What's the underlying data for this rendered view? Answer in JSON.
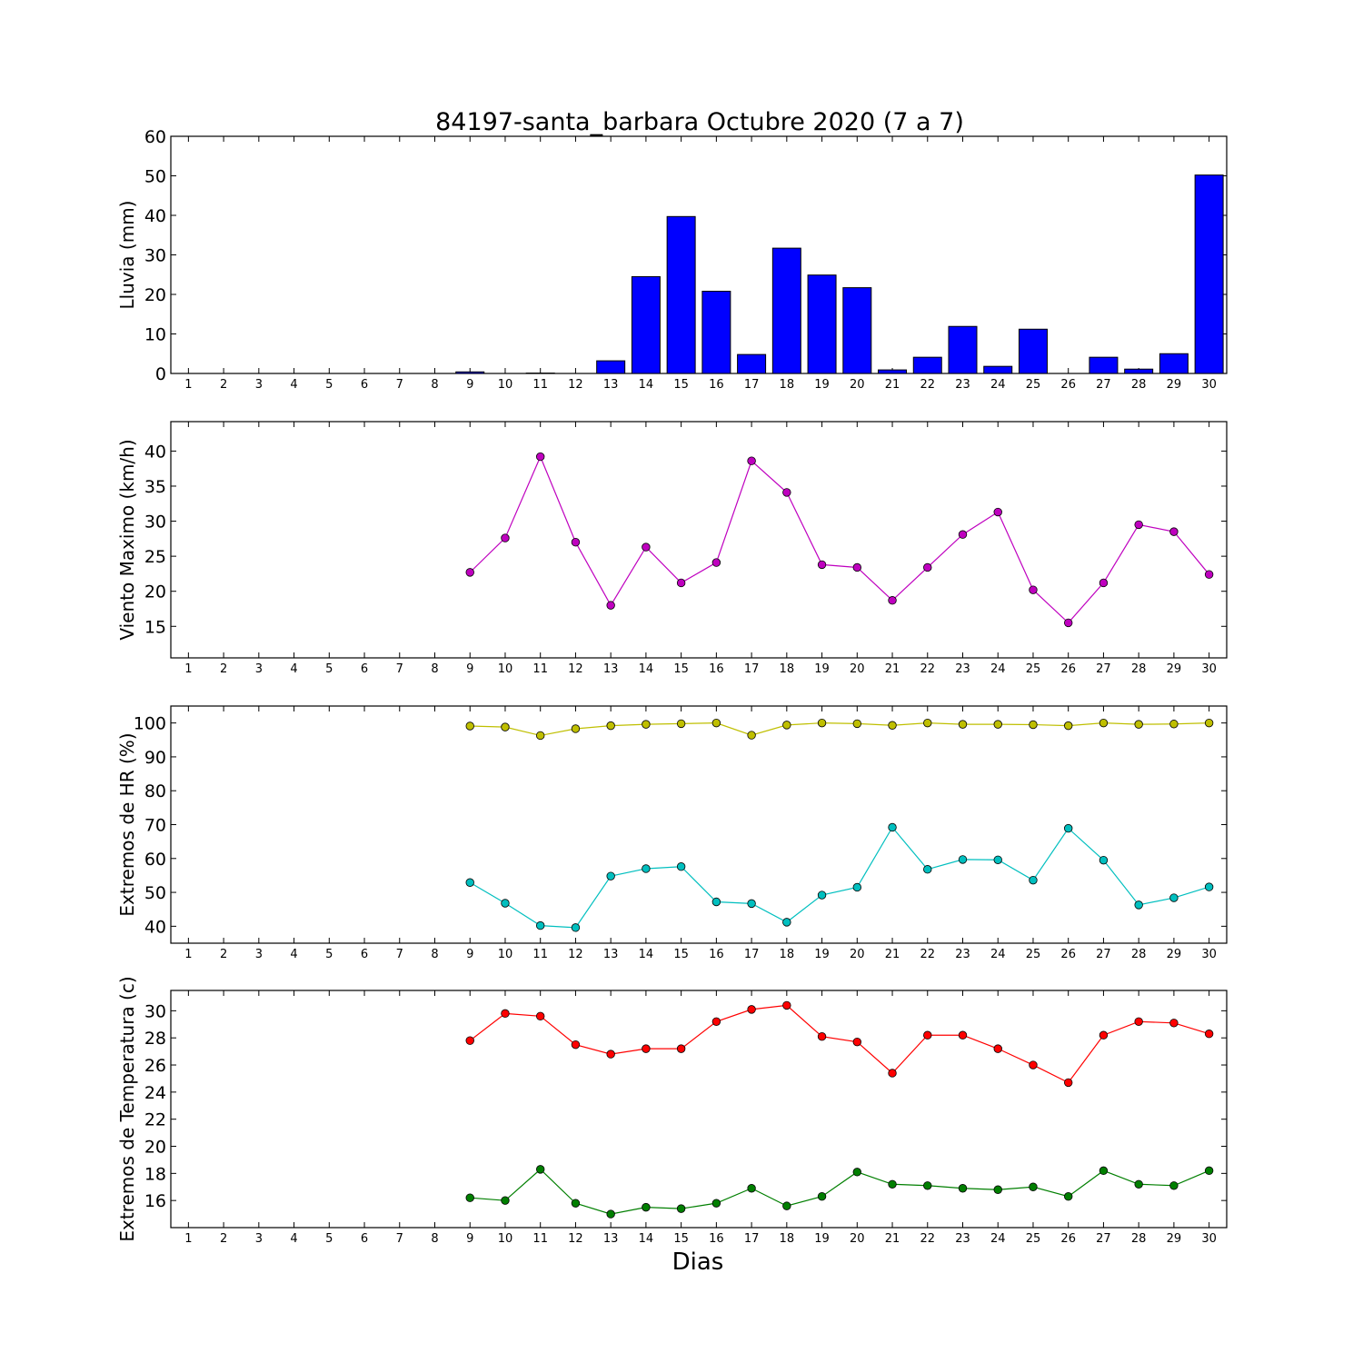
{
  "chart_data": [
    {
      "type": "bar",
      "title": "84197-santa_barbara Octubre 2020  (7 a 7)",
      "ylabel": "Lluvia (mm)",
      "xlabel": "",
      "ylim": [
        0,
        60
      ],
      "yticks": [
        0,
        10,
        20,
        30,
        40,
        50,
        60
      ],
      "xticks": [
        1,
        2,
        3,
        4,
        5,
        6,
        7,
        8,
        9,
        10,
        11,
        12,
        13,
        14,
        15,
        16,
        17,
        18,
        19,
        20,
        21,
        22,
        23,
        24,
        25,
        26,
        27,
        28,
        29,
        30
      ],
      "x": [
        9,
        10,
        11,
        12,
        13,
        14,
        15,
        16,
        17,
        18,
        19,
        20,
        21,
        22,
        23,
        24,
        25,
        26,
        27,
        28,
        29,
        30
      ],
      "series": [
        {
          "color": "#0000ff",
          "values": [
            0.4,
            0,
            0.1,
            0,
            3.2,
            24.5,
            39.7,
            20.8,
            4.8,
            31.7,
            24.9,
            21.7,
            0.9,
            4.1,
            11.9,
            1.8,
            11.2,
            0,
            4.1,
            1.1,
            5.0,
            50.2
          ]
        }
      ]
    },
    {
      "type": "line",
      "title": "",
      "ylabel": "Viento Maximo (km/h)",
      "xlabel": "",
      "ylim": [
        10.5,
        44.2
      ],
      "yticks": [
        15,
        20,
        25,
        30,
        35,
        40
      ],
      "xticks": [
        1,
        2,
        3,
        4,
        5,
        6,
        7,
        8,
        9,
        10,
        11,
        12,
        13,
        14,
        15,
        16,
        17,
        18,
        19,
        20,
        21,
        22,
        23,
        24,
        25,
        26,
        27,
        28,
        29,
        30
      ],
      "x": [
        9,
        10,
        11,
        12,
        13,
        14,
        15,
        16,
        17,
        18,
        19,
        20,
        21,
        22,
        23,
        24,
        25,
        26,
        27,
        28,
        29,
        30
      ],
      "series": [
        {
          "color": "#bf00bf",
          "values": [
            22.7,
            27.6,
            39.2,
            27.0,
            18.0,
            26.3,
            21.2,
            24.1,
            38.6,
            34.1,
            23.8,
            23.4,
            18.7,
            23.4,
            28.1,
            31.3,
            20.2,
            15.5,
            21.2,
            29.5,
            28.5,
            22.4
          ]
        }
      ]
    },
    {
      "type": "line",
      "title": "",
      "ylabel": "Extremos de HR (%)",
      "xlabel": "",
      "ylim": [
        35,
        105
      ],
      "yticks": [
        40,
        50,
        60,
        70,
        80,
        90,
        100
      ],
      "xticks": [
        1,
        2,
        3,
        4,
        5,
        6,
        7,
        8,
        9,
        10,
        11,
        12,
        13,
        14,
        15,
        16,
        17,
        18,
        19,
        20,
        21,
        22,
        23,
        24,
        25,
        26,
        27,
        28,
        29,
        30
      ],
      "x": [
        9,
        10,
        11,
        12,
        13,
        14,
        15,
        16,
        17,
        18,
        19,
        20,
        21,
        22,
        23,
        24,
        25,
        26,
        27,
        28,
        29,
        30
      ],
      "series": [
        {
          "color": "#bfbf00",
          "values": [
            99.1,
            98.8,
            96.3,
            98.3,
            99.2,
            99.6,
            99.8,
            100.0,
            96.4,
            99.4,
            100.0,
            99.8,
            99.3,
            100.0,
            99.6,
            99.6,
            99.5,
            99.2,
            100.0,
            99.6,
            99.7,
            100.0
          ]
        },
        {
          "color": "#00bfbf",
          "values": [
            52.9,
            46.8,
            40.2,
            39.6,
            54.8,
            57.0,
            57.6,
            47.2,
            46.7,
            41.2,
            49.2,
            51.5,
            69.2,
            56.8,
            59.7,
            59.6,
            53.6,
            68.9,
            59.5,
            46.3,
            48.4,
            51.6
          ]
        }
      ]
    },
    {
      "type": "line",
      "title": "",
      "ylabel": "Extremos de Temperatura (c)",
      "xlabel": "Dias",
      "ylim": [
        14,
        31.5
      ],
      "yticks": [
        16,
        18,
        20,
        22,
        24,
        26,
        28,
        30
      ],
      "xticks": [
        1,
        2,
        3,
        4,
        5,
        6,
        7,
        8,
        9,
        10,
        11,
        12,
        13,
        14,
        15,
        16,
        17,
        18,
        19,
        20,
        21,
        22,
        23,
        24,
        25,
        26,
        27,
        28,
        29,
        30
      ],
      "x": [
        9,
        10,
        11,
        12,
        13,
        14,
        15,
        16,
        17,
        18,
        19,
        20,
        21,
        22,
        23,
        24,
        25,
        26,
        27,
        28,
        29,
        30
      ],
      "series": [
        {
          "color": "#ff0000",
          "values": [
            27.8,
            29.8,
            29.6,
            27.5,
            26.8,
            27.2,
            27.2,
            29.2,
            30.1,
            30.4,
            28.1,
            27.7,
            25.4,
            28.2,
            28.2,
            27.2,
            26.0,
            24.7,
            28.2,
            29.2,
            29.1,
            28.3
          ]
        },
        {
          "color": "#007f00",
          "values": [
            16.2,
            16.0,
            18.3,
            15.8,
            15.0,
            15.5,
            15.4,
            15.8,
            16.9,
            15.6,
            16.3,
            18.1,
            17.2,
            17.1,
            16.9,
            16.8,
            17.0,
            16.3,
            18.2,
            17.2,
            17.1,
            18.2
          ]
        }
      ]
    }
  ]
}
